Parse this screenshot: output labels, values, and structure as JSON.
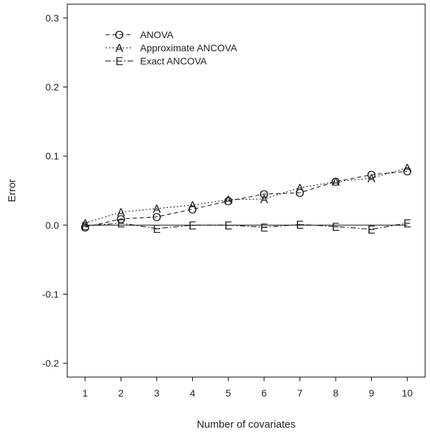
{
  "chart_data": {
    "type": "line",
    "title": "",
    "xlabel": "Number of covariates",
    "ylabel": "Error",
    "categories": [
      1,
      2,
      3,
      4,
      5,
      6,
      7,
      8,
      9,
      10
    ],
    "x": [
      1,
      2,
      3,
      4,
      5,
      6,
      7,
      8,
      9,
      10
    ],
    "xlim": [
      0.5,
      10.5
    ],
    "ylim": [
      -0.22,
      0.32
    ],
    "yticks": [
      -0.2,
      -0.1,
      0.0,
      0.1,
      0.2,
      0.3
    ],
    "ytick_labels": [
      "-0.2",
      "-0.1",
      "0.0",
      "0.1",
      "0.2",
      "0.3"
    ],
    "xtick_labels": [
      "1",
      "2",
      "3",
      "4",
      "5",
      "6",
      "7",
      "8",
      "9",
      "10"
    ],
    "reference_line": 0.0,
    "grid": false,
    "legend_position": "top-left",
    "series": [
      {
        "name": "ANOVA",
        "marker": "O",
        "line_style": "dashed",
        "values": [
          -0.003,
          0.009,
          0.012,
          0.023,
          0.035,
          0.045,
          0.047,
          0.063,
          0.073,
          0.078
        ]
      },
      {
        "name": "Approximate ANCOVA",
        "marker": "A",
        "line_style": "dotted",
        "values": [
          0.003,
          0.019,
          0.024,
          0.029,
          0.037,
          0.038,
          0.054,
          0.063,
          0.068,
          0.083
        ]
      },
      {
        "name": "Exact ANCOVA",
        "marker": "E",
        "line_style": "dashdot",
        "values": [
          -0.001,
          0.003,
          -0.005,
          0.0,
          0.0,
          -0.003,
          0.001,
          -0.002,
          -0.006,
          0.003
        ]
      }
    ]
  }
}
